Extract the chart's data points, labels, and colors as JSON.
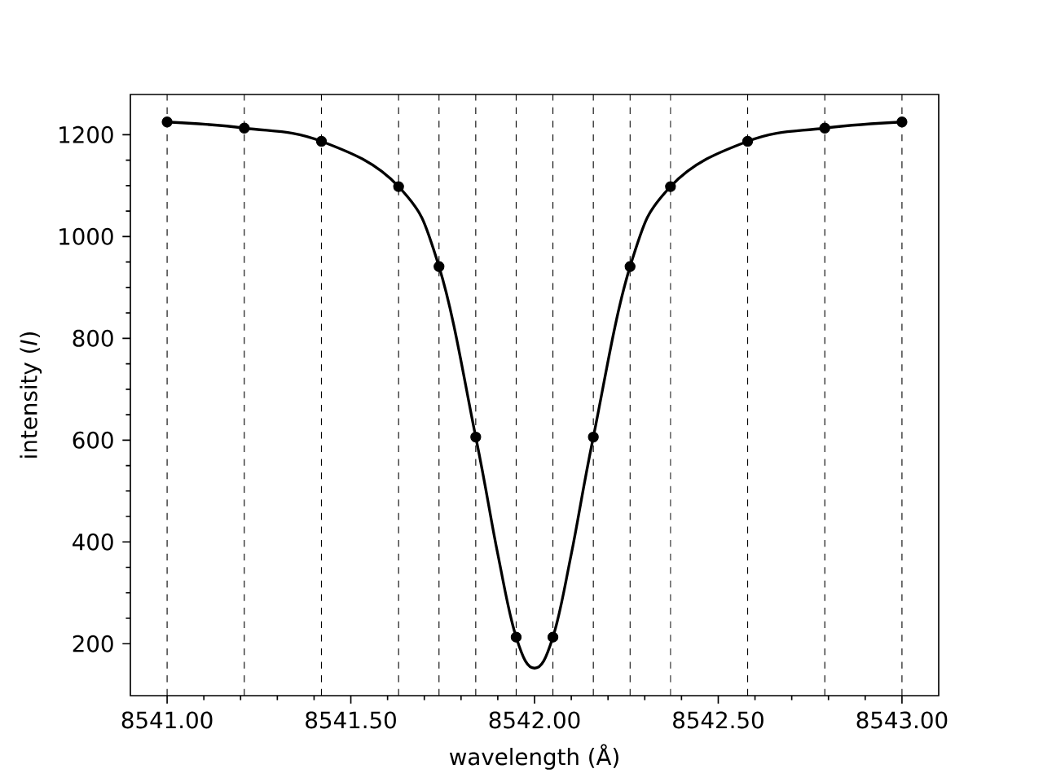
{
  "chart_data": {
    "type": "line",
    "xlabel": "wavelength (Å)",
    "ylabel": "intensity (*I*)",
    "xlim": [
      8540.9,
      8543.1
    ],
    "ylim": [
      98,
      1279
    ],
    "xticks": [
      {
        "value": 8541.0,
        "label": "8541.00"
      },
      {
        "value": 8541.5,
        "label": "8541.50"
      },
      {
        "value": 8542.0,
        "label": "8542.00"
      },
      {
        "value": 8542.5,
        "label": "8542.50"
      },
      {
        "value": 8543.0,
        "label": "8543.00"
      }
    ],
    "yticks": [
      200,
      400,
      600,
      800,
      1000,
      1200
    ],
    "series": [
      {
        "color": "#000000",
        "marker": "none",
        "line_style": "solid",
        "x": [
          8541.0,
          8541.21,
          8541.42,
          8541.63,
          8541.74,
          8541.84,
          8541.9,
          8541.95,
          8542.0,
          8542.05,
          8542.1,
          8542.16,
          8542.26,
          8542.37,
          8542.58,
          8542.79,
          8543.0
        ],
        "values": [
          1225,
          1213,
          1187,
          1098,
          941,
          606,
          376,
          213,
          152,
          213,
          376,
          606,
          941,
          1098,
          1187,
          1213,
          1225
        ]
      },
      {
        "type": "scatter",
        "color": "#000000",
        "marker": "circle",
        "x": [
          8541.0,
          8541.21,
          8541.42,
          8541.63,
          8541.74,
          8541.84,
          8541.95,
          8542.05,
          8542.16,
          8542.26,
          8542.37,
          8542.58,
          8542.79,
          8543.0
        ],
        "values": [
          1225,
          1213,
          1187,
          1098,
          941,
          606,
          213,
          213,
          606,
          941,
          1098,
          1187,
          1213,
          1225
        ]
      }
    ],
    "ref_lines": [
      {
        "axis": "x",
        "value": 8541.0,
        "color": "#000000",
        "line_style": "dashed"
      },
      {
        "axis": "x",
        "value": 8541.21,
        "color": "#000000",
        "line_style": "dashed"
      },
      {
        "axis": "x",
        "value": 8541.42,
        "color": "#000000",
        "line_style": "dashed"
      },
      {
        "axis": "x",
        "value": 8541.63,
        "color": "#000000",
        "line_style": "dashed"
      },
      {
        "axis": "x",
        "value": 8541.74,
        "color": "#000000",
        "line_style": "dashed"
      },
      {
        "axis": "x",
        "value": 8541.84,
        "color": "#000000",
        "line_style": "dashed"
      },
      {
        "axis": "x",
        "value": 8541.95,
        "color": "#000000",
        "line_style": "dashed"
      },
      {
        "axis": "x",
        "value": 8542.05,
        "color": "#000000",
        "line_style": "dashed"
      },
      {
        "axis": "x",
        "value": 8542.16,
        "color": "#000000",
        "line_style": "dashed"
      },
      {
        "axis": "x",
        "value": 8542.26,
        "color": "#000000",
        "line_style": "dashed"
      },
      {
        "axis": "x",
        "value": 8542.37,
        "color": "#000000",
        "line_style": "dashed"
      },
      {
        "axis": "x",
        "value": 8542.58,
        "color": "#000000",
        "line_style": "dashed"
      },
      {
        "axis": "x",
        "value": 8542.79,
        "color": "#000000",
        "line_style": "dashed"
      },
      {
        "axis": "x",
        "value": 8543.0,
        "color": "#000000",
        "line_style": "dashed"
      }
    ]
  }
}
